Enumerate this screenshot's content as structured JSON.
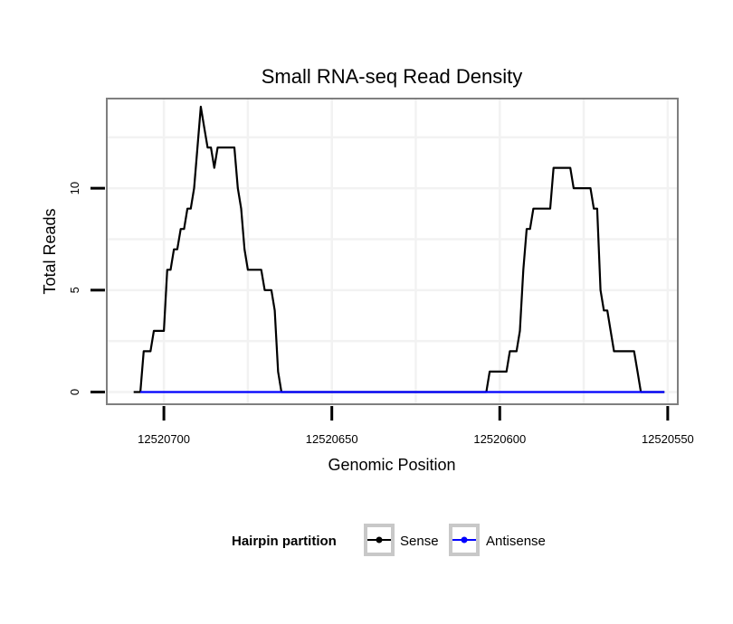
{
  "chart_data": {
    "type": "line",
    "title": "Small RNA-seq Read Density",
    "xlabel": "Genomic Position",
    "ylabel": "Total Reads",
    "xlim": [
      12520717,
      12520547
    ],
    "x_reversed": true,
    "ylim": [
      -0.6,
      14.4
    ],
    "x_ticks": [
      12520700,
      12520650,
      12520600,
      12520550
    ],
    "x_tick_labels": [
      "12520700",
      "12520650",
      "12520600",
      "12520550"
    ],
    "y_ticks": [
      0,
      5,
      10
    ],
    "y_tick_labels": [
      "0",
      "5",
      "10"
    ],
    "grid": true,
    "legend": {
      "title": "Hairpin partition",
      "position": "bottom",
      "entries": [
        {
          "name": "Sense",
          "color": "#000000"
        },
        {
          "name": "Antisense",
          "color": "#0000ff"
        }
      ]
    },
    "series": [
      {
        "name": "Sense",
        "color": "#000000",
        "x": [
          12520709,
          12520707,
          12520706,
          12520704,
          12520703,
          12520701,
          12520700,
          12520699,
          12520698,
          12520697,
          12520696,
          12520695,
          12520694,
          12520693,
          12520692,
          12520691,
          12520690,
          12520689,
          12520688,
          12520687,
          12520686,
          12520685,
          12520684,
          12520683,
          12520682,
          12520681,
          12520680,
          12520679,
          12520678,
          12520677,
          12520676,
          12520675,
          12520674,
          12520673,
          12520672,
          12520671,
          12520670,
          12520669,
          12520668,
          12520667,
          12520666,
          12520665,
          12520664,
          12520663,
          12520604,
          12520603,
          12520602,
          12520601,
          12520600,
          12520599,
          12520598,
          12520597,
          12520596,
          12520595,
          12520594,
          12520593,
          12520592,
          12520591,
          12520590,
          12520589,
          12520588,
          12520587,
          12520586,
          12520585,
          12520584,
          12520583,
          12520582,
          12520581,
          12520580,
          12520579,
          12520578,
          12520577,
          12520576,
          12520575,
          12520574,
          12520573,
          12520572,
          12520571,
          12520570,
          12520569,
          12520568,
          12520567,
          12520566,
          12520565,
          12520564,
          12520563,
          12520562,
          12520561,
          12520560,
          12520559,
          12520558,
          12520557,
          12520556,
          12520555,
          12520554,
          12520553,
          12520552,
          12520551
        ],
        "y": [
          0,
          0,
          2,
          2,
          3,
          3,
          3,
          6,
          6,
          7,
          7,
          8,
          8,
          9,
          9,
          10,
          12,
          14,
          13,
          12,
          12,
          11,
          12,
          12,
          12,
          12,
          12,
          12,
          10,
          9,
          7,
          6,
          6,
          6,
          6,
          6,
          5,
          5,
          5,
          4,
          1,
          0,
          0,
          0,
          0,
          1,
          1,
          1,
          1,
          1,
          1,
          2,
          2,
          2,
          3,
          6,
          8,
          8,
          9,
          9,
          9,
          9,
          9,
          9,
          11,
          11,
          11,
          11,
          11,
          11,
          10,
          10,
          10,
          10,
          10,
          10,
          9,
          9,
          5,
          4,
          4,
          3,
          2,
          2,
          2,
          2,
          2,
          2,
          2,
          1,
          0,
          0,
          0,
          0,
          0,
          0,
          0,
          0
        ]
      },
      {
        "name": "Antisense",
        "color": "#0000ff",
        "x": [
          12520707,
          12520551
        ],
        "y": [
          0,
          0
        ]
      }
    ]
  }
}
